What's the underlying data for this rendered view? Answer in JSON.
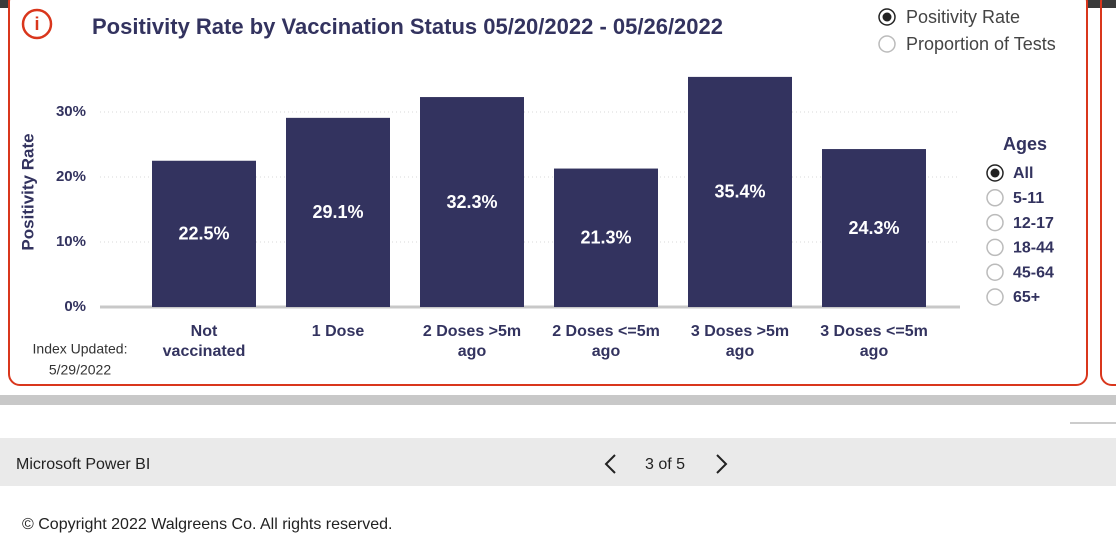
{
  "header": {
    "info_icon": "i"
  },
  "chart_data": {
    "type": "bar",
    "title": "Positivity Rate by Vaccination Status 05/20/2022 - 05/26/2022",
    "y_label": "Positivity Rate",
    "categories": [
      "Not vaccinated",
      "1 Dose",
      "2 Doses >5m ago",
      "2 Doses <=5m ago",
      "3 Doses >5m ago",
      "3 Doses <=5m ago"
    ],
    "values": [
      22.5,
      29.1,
      32.3,
      21.3,
      35.4,
      24.3
    ],
    "value_labels": [
      "22.5%",
      "29.1%",
      "32.3%",
      "21.3%",
      "35.4%",
      "24.3%"
    ],
    "color": "#33335f",
    "ylim": [
      0,
      36
    ],
    "yticks": [
      {
        "value": 0,
        "label": "0%"
      },
      {
        "value": 10,
        "label": "10%"
      },
      {
        "value": 20,
        "label": "20%"
      },
      {
        "value": 30,
        "label": "30%"
      }
    ],
    "grid": true
  },
  "metric_toggle": {
    "options": [
      "Positivity Rate",
      "Proportion of Tests"
    ],
    "selected_index": 0
  },
  "ages": {
    "title": "Ages",
    "options": [
      "All",
      "5-11",
      "12-17",
      "18-44",
      "45-64",
      "65+"
    ],
    "selected_index": 0
  },
  "index_updated": {
    "label": "Index Updated:",
    "date": "5/29/2022"
  },
  "footer": {
    "brand": "Microsoft Power BI",
    "page": "3 of 5"
  },
  "copyright": "© Copyright 2022 Walgreens Co. All rights reserved."
}
